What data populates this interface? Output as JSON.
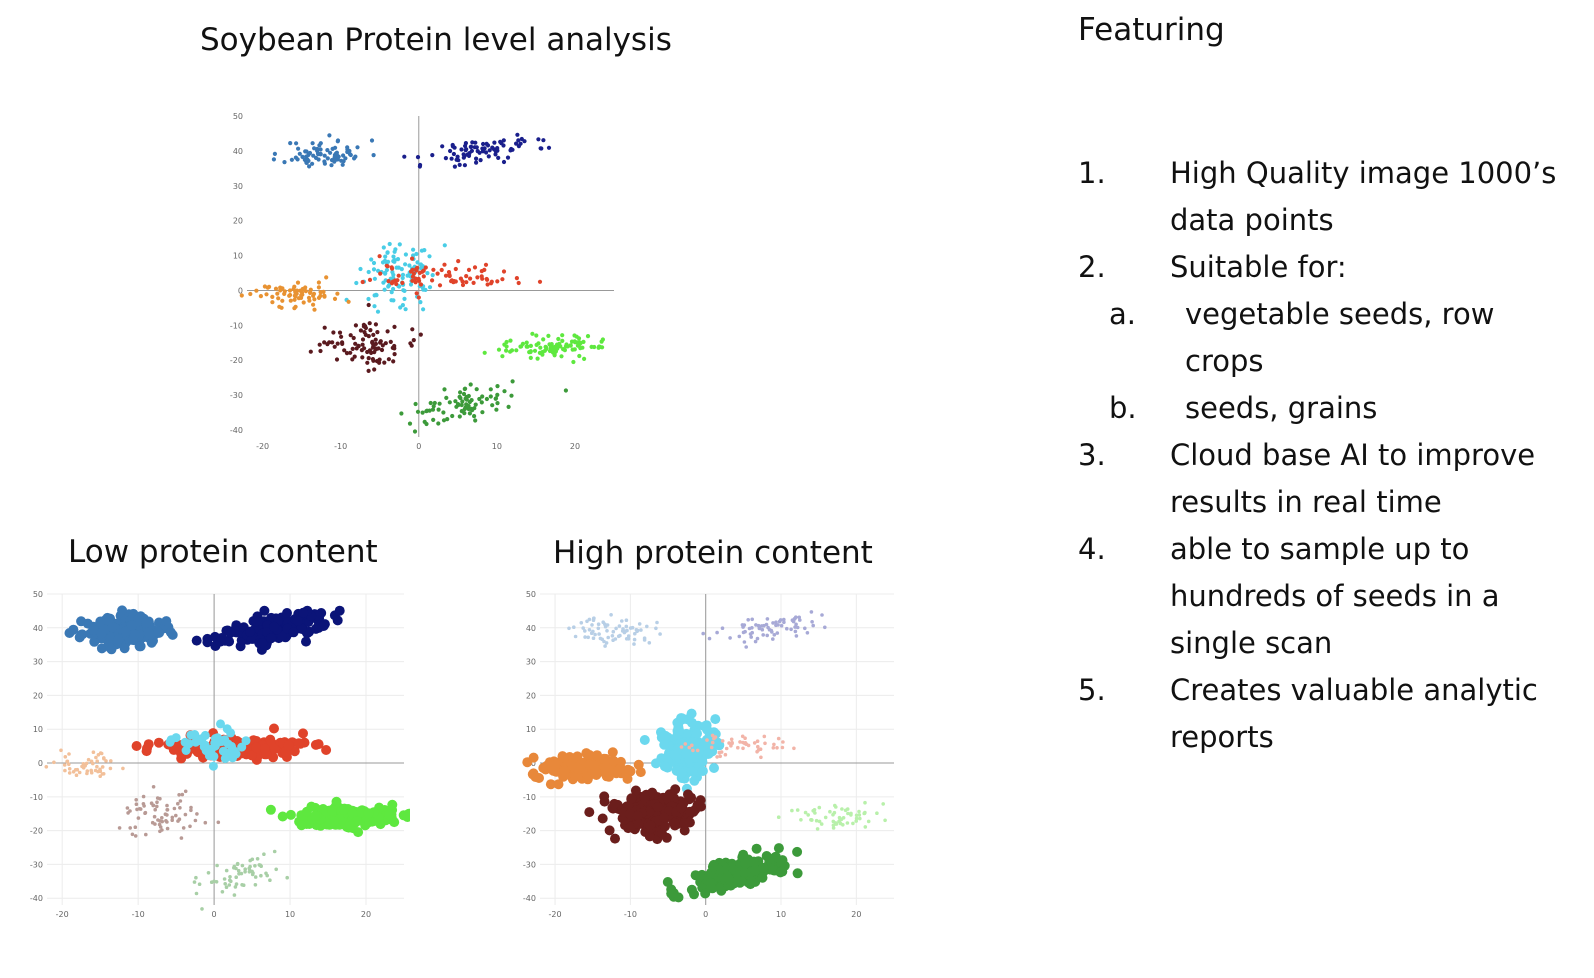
{
  "chart_data": [
    {
      "type": "scatter",
      "title": "Soybean Protein level analysis",
      "xlim": [
        -22,
        25
      ],
      "ylim": [
        -42,
        50
      ],
      "xticks": [
        -20,
        -10,
        0,
        10,
        20
      ],
      "yticks": [
        50,
        40,
        30,
        20,
        10,
        0,
        -10,
        -20,
        -30,
        -40
      ],
      "grid": false,
      "series": [
        {
          "color": "#3a78b5",
          "cluster": {
            "cx": -12,
            "cy": 39,
            "sx": 2.6,
            "sy": 2.0,
            "n": 80
          },
          "dot": 2.1
        },
        {
          "color": "#1a1f8c",
          "cluster": {
            "cx": 8,
            "cy": 40,
            "sx": 3.5,
            "sy": 2.0,
            "n": 80,
            "tilt": 0.35
          },
          "dot": 2.1
        },
        {
          "color": "#49cde6",
          "cluster": {
            "cx": -2.5,
            "cy": 5,
            "sx": 2.5,
            "sy": 4.5,
            "n": 110
          },
          "dot": 2.1
        },
        {
          "color": "#e0432a",
          "cluster": {
            "cx": 3,
            "cy": 4,
            "sx": 4.5,
            "sy": 2.0,
            "n": 80
          },
          "dot": 2.1
        },
        {
          "color": "#e89232",
          "cluster": {
            "cx": -16,
            "cy": -1,
            "sx": 3.2,
            "sy": 1.8,
            "n": 70
          },
          "dot": 2.1
        },
        {
          "color": "#5a1a1f",
          "cluster": {
            "cx": -7,
            "cy": -15,
            "sx": 2.6,
            "sy": 3.5,
            "n": 90
          },
          "dot": 2.1
        },
        {
          "color": "#5ee83f",
          "cluster": {
            "cx": 17.5,
            "cy": -16,
            "sx": 3.2,
            "sy": 1.6,
            "n": 100
          },
          "dot": 2.1
        },
        {
          "color": "#3c9a3a",
          "cluster": {
            "cx": 5,
            "cy": -33,
            "sx": 3.0,
            "sy": 2.5,
            "n": 80,
            "tilt": 0.6
          },
          "dot": 2.1
        }
      ]
    },
    {
      "type": "scatter",
      "title": "Low protein content",
      "xlim": [
        -22,
        25
      ],
      "ylim": [
        -42,
        50
      ],
      "xticks": [
        -20,
        -10,
        0,
        10,
        20
      ],
      "yticks": [
        50,
        40,
        30,
        20,
        10,
        0,
        -10,
        -20,
        -30,
        -40
      ],
      "grid": true,
      "series": [
        {
          "color": "#3a78b5",
          "cluster": {
            "cx": -12,
            "cy": 39,
            "sx": 2.6,
            "sy": 2.0,
            "n": 180
          },
          "dot": 5
        },
        {
          "color": "#0b1478",
          "cluster": {
            "cx": 8,
            "cy": 40,
            "sx": 3.5,
            "sy": 2.0,
            "n": 180,
            "tilt": 0.35
          },
          "dot": 5
        },
        {
          "color": "#e0432a",
          "cluster": {
            "cx": 2,
            "cy": 4.5,
            "sx": 5.5,
            "sy": 1.8,
            "n": 140
          },
          "dot": 5
        },
        {
          "color": "#6bd8ee",
          "cluster": {
            "cx": -1,
            "cy": 5,
            "sx": 2.0,
            "sy": 2.5,
            "n": 40
          },
          "dot": 4.5
        },
        {
          "color": "#f2c09a",
          "cluster": {
            "cx": -17,
            "cy": -1,
            "sx": 3.0,
            "sy": 1.8,
            "n": 50
          },
          "dot": 1.8
        },
        {
          "color": "#b89a95",
          "cluster": {
            "cx": -7,
            "cy": -15,
            "sx": 2.6,
            "sy": 3.5,
            "n": 70
          },
          "dot": 1.8
        },
        {
          "color": "#5ee83f",
          "cluster": {
            "cx": 17.5,
            "cy": -16,
            "sx": 3.2,
            "sy": 1.4,
            "n": 220
          },
          "dot": 5
        },
        {
          "color": "#a8cfa6",
          "cluster": {
            "cx": 4,
            "cy": -33,
            "sx": 3.0,
            "sy": 2.5,
            "n": 60,
            "tilt": 0.6
          },
          "dot": 1.8
        }
      ]
    },
    {
      "type": "scatter",
      "title": "High protein content",
      "xlim": [
        -22,
        25
      ],
      "ylim": [
        -42,
        50
      ],
      "xticks": [
        -20,
        -10,
        0,
        10,
        20
      ],
      "yticks": [
        50,
        40,
        30,
        20,
        10,
        0,
        -10,
        -20,
        -30,
        -40
      ],
      "grid": true,
      "series": [
        {
          "color": "#b8cfe6",
          "cluster": {
            "cx": -12,
            "cy": 39,
            "sx": 2.6,
            "sy": 2.0,
            "n": 70
          },
          "dot": 1.8
        },
        {
          "color": "#a7a9d6",
          "cluster": {
            "cx": 8,
            "cy": 40,
            "sx": 3.5,
            "sy": 2.0,
            "n": 70,
            "tilt": 0.35
          },
          "dot": 1.8
        },
        {
          "color": "#6bd8ee",
          "cluster": {
            "cx": -2.5,
            "cy": 5,
            "sx": 1.8,
            "sy": 4.5,
            "n": 150
          },
          "dot": 5
        },
        {
          "color": "#f2b4a8",
          "cluster": {
            "cx": 4,
            "cy": 5,
            "sx": 3.5,
            "sy": 1.6,
            "n": 50
          },
          "dot": 1.8
        },
        {
          "color": "#e8883a",
          "cluster": {
            "cx": -16,
            "cy": -1,
            "sx": 3.2,
            "sy": 1.8,
            "n": 150
          },
          "dot": 5
        },
        {
          "color": "#6b1e1c",
          "cluster": {
            "cx": -7,
            "cy": -15,
            "sx": 2.6,
            "sy": 3.0,
            "n": 220
          },
          "dot": 5
        },
        {
          "color": "#b8f0aa",
          "cluster": {
            "cx": 17.5,
            "cy": -16,
            "sx": 3.2,
            "sy": 1.6,
            "n": 60
          },
          "dot": 1.8
        },
        {
          "color": "#3c9a3a",
          "cluster": {
            "cx": 4,
            "cy": -33,
            "sx": 3.2,
            "sy": 2.0,
            "n": 170,
            "tilt": 0.6
          },
          "dot": 5
        }
      ]
    }
  ],
  "features": {
    "title": "Featuring",
    "items": [
      {
        "num": "1.",
        "text": "High Quality image 1000’s data points"
      },
      {
        "num": "2.",
        "text": "Suitable for:",
        "sub": [
          {
            "num": "a.",
            "text": "vegetable seeds, row crops"
          },
          {
            "num": "b.",
            "text": "seeds, grains"
          }
        ]
      },
      {
        "num": "3.",
        "text": "Cloud base AI to improve results in real time"
      },
      {
        "num": "4.",
        "text": "able to sample up to hundreds of seeds in a single scan"
      },
      {
        "num": "5.",
        "text": "Creates valuable analytic reports"
      }
    ]
  }
}
